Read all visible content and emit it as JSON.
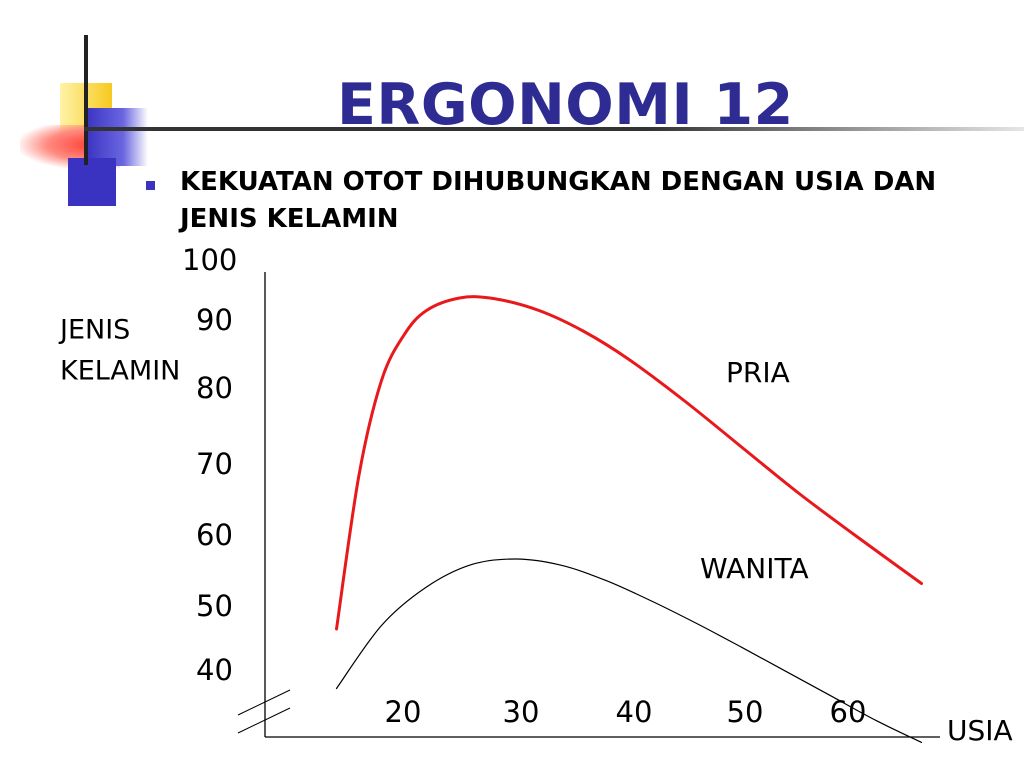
{
  "slide": {
    "title": "ERGONOMI 12",
    "bullet": "KEKUATAN OTOT DIHUBUNGKAN DENGAN USIA DAN JENIS KELAMIN"
  },
  "colors": {
    "title": "#2e2b92",
    "accent_blue": "#3a33c2",
    "pria_line": "#e8181b",
    "wanita_line": "#000000"
  },
  "chart_data": {
    "type": "line",
    "ylabel_lines": [
      "JENIS",
      "KELAMIN"
    ],
    "xlabel": "USIA",
    "yticks": [
      "100",
      "90",
      "80",
      "70",
      "60",
      "50",
      "40"
    ],
    "xticks": [
      "20",
      "30",
      "40",
      "50",
      "60"
    ],
    "series": [
      {
        "name": "PRIA",
        "x": [
          14,
          16,
          18,
          20,
          22,
          25,
          28,
          32,
          36,
          40,
          45,
          50,
          55,
          60,
          66
        ],
        "y": [
          51,
          73,
          86.5,
          93,
          96.5,
          98.3,
          98.2,
          96.5,
          93.5,
          89.5,
          83.5,
          77,
          70.5,
          64.5,
          57.5
        ]
      },
      {
        "name": "WANITA",
        "x": [
          14,
          18,
          22,
          26,
          30,
          34,
          38,
          42,
          46,
          50,
          54,
          58,
          62,
          66
        ],
        "y": [
          42.5,
          51.5,
          57,
          60.2,
          61,
          60.1,
          57.9,
          55,
          51.8,
          48.4,
          44.9,
          41.4,
          37.9,
          34.8
        ]
      }
    ]
  }
}
